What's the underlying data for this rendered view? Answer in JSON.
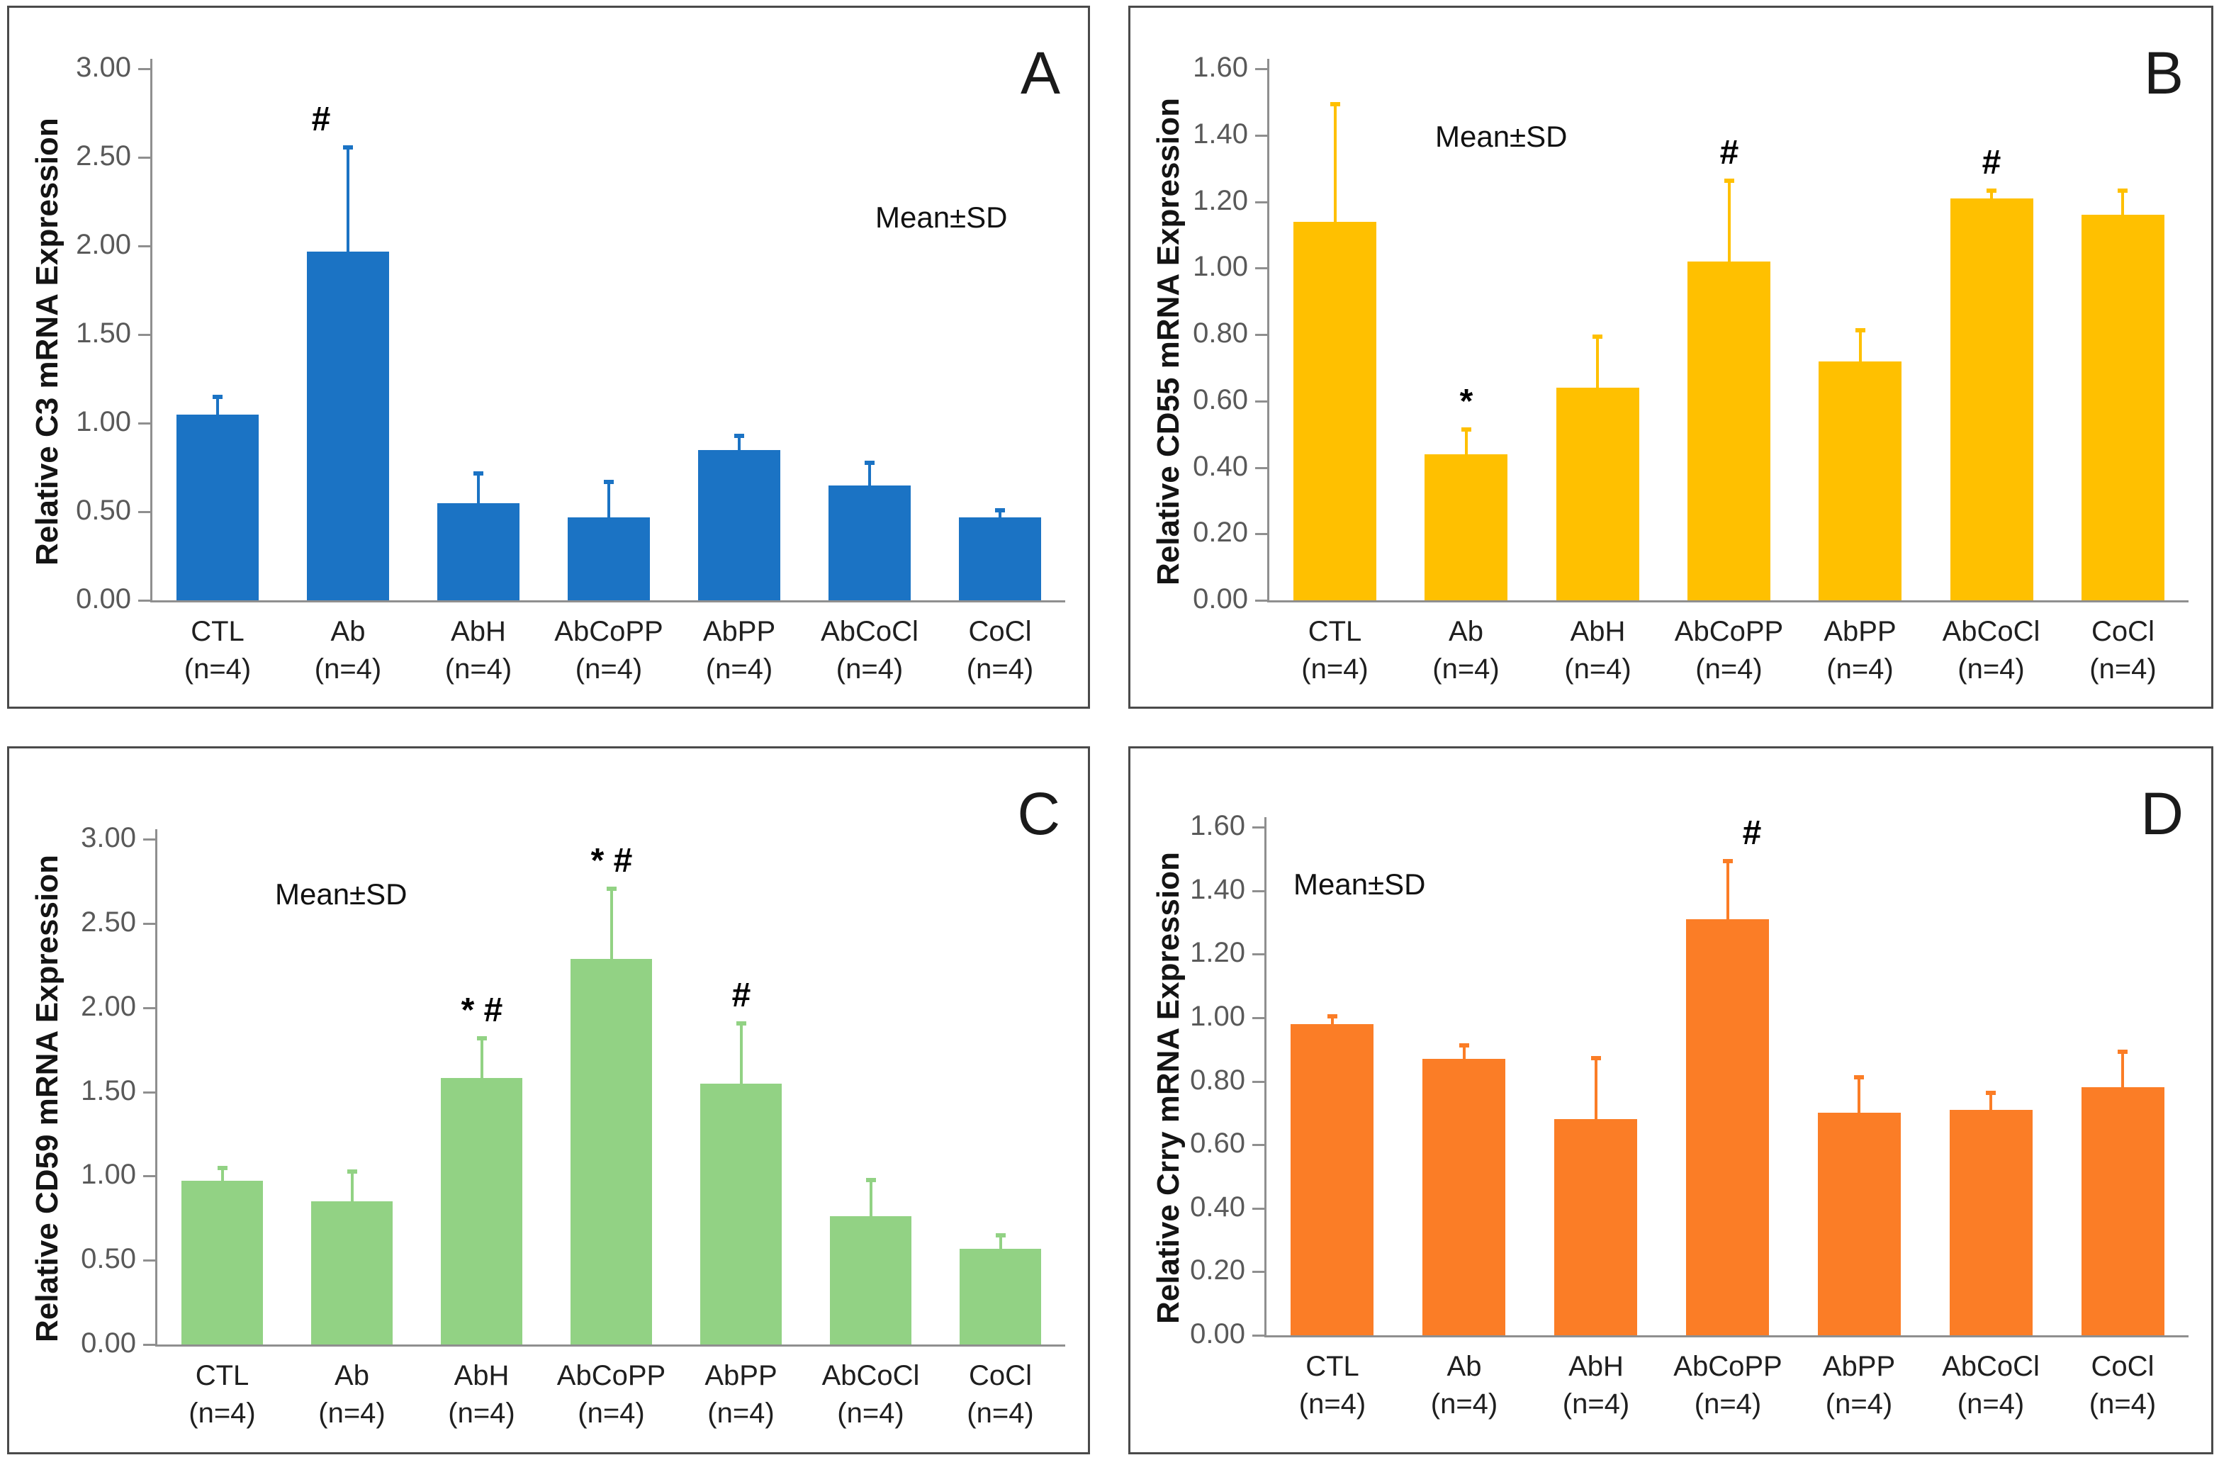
{
  "figure": {
    "mean_sd_label": "Mean±SD",
    "category_sublabel": "(n=4)",
    "panel_border_color": "#4a4a4a",
    "axis_color": "#8f8f8f",
    "tick_text_color": "#595959"
  },
  "chart_data": [
    {
      "type": "bar",
      "panel_letter": "A",
      "ylabel": "Relative C3 mRNA Expression",
      "xlabel": "",
      "title": "",
      "legend": "Mean±SD",
      "color": "#1B73C4",
      "ylim": [
        0,
        3.0
      ],
      "ytick_values": [
        0.0,
        0.5,
        1.0,
        1.5,
        2.0,
        2.5,
        3.0
      ],
      "ytick_labels": [
        "0.00",
        "0.50",
        "1.00",
        "1.50",
        "2.00",
        "2.50",
        "3.00"
      ],
      "categories": [
        "CTL",
        "Ab",
        "AbH",
        "AbCoPP",
        "AbPP",
        "AbCoCl",
        "CoCl"
      ],
      "n_per_group": 4,
      "values": [
        1.05,
        1.97,
        0.55,
        0.47,
        0.85,
        0.65,
        0.47
      ],
      "errors_upper": [
        0.11,
        0.6,
        0.18,
        0.21,
        0.09,
        0.14,
        0.05
      ],
      "annotations": [
        "",
        "#",
        "",
        "",
        "",
        "",
        ""
      ]
    },
    {
      "type": "bar",
      "panel_letter": "B",
      "ylabel": "Relative CD55 mRNA Expression",
      "xlabel": "",
      "title": "",
      "legend": "Mean±SD",
      "color": "#FFC000",
      "ylim": [
        0,
        1.6
      ],
      "ytick_values": [
        0.0,
        0.2,
        0.4,
        0.6,
        0.8,
        1.0,
        1.2,
        1.4,
        1.6
      ],
      "ytick_labels": [
        "0.00",
        "0.20",
        "0.40",
        "0.60",
        "0.80",
        "1.00",
        "1.20",
        "1.40",
        "1.60"
      ],
      "categories": [
        "CTL",
        "Ab",
        "AbH",
        "AbCoPP",
        "AbPP",
        "AbCoCl",
        "CoCl"
      ],
      "n_per_group": 4,
      "values": [
        1.14,
        0.44,
        0.64,
        1.02,
        0.72,
        1.21,
        1.16
      ],
      "errors_upper": [
        0.36,
        0.08,
        0.16,
        0.25,
        0.1,
        0.03,
        0.08
      ],
      "annotations": [
        "",
        "*",
        "",
        "#",
        "",
        "#",
        ""
      ]
    },
    {
      "type": "bar",
      "panel_letter": "C",
      "ylabel": "Relative CD59 mRNA Expression",
      "xlabel": "",
      "title": "",
      "legend": "Mean±SD",
      "color": "#92D284",
      "ylim": [
        0,
        3.0
      ],
      "ytick_values": [
        0.0,
        0.5,
        1.0,
        1.5,
        2.0,
        2.5,
        3.0
      ],
      "ytick_labels": [
        "0.00",
        "0.50",
        "1.00",
        "1.50",
        "2.00",
        "2.50",
        "3.00"
      ],
      "categories": [
        "CTL",
        "Ab",
        "AbH",
        "AbCoPP",
        "AbPP",
        "AbCoCl",
        "CoCl"
      ],
      "n_per_group": 4,
      "values": [
        0.97,
        0.85,
        1.58,
        2.29,
        1.55,
        0.76,
        0.57
      ],
      "errors_upper": [
        0.09,
        0.19,
        0.25,
        0.43,
        0.37,
        0.23,
        0.09
      ],
      "annotations": [
        "",
        "",
        "* #",
        "* #",
        "#",
        "",
        ""
      ]
    },
    {
      "type": "bar",
      "panel_letter": "D",
      "ylabel": "Relative Crry mRNA Expression",
      "xlabel": "",
      "title": "",
      "legend": "Mean±SD",
      "color": "#FB7D26",
      "ylim": [
        0,
        1.6
      ],
      "ytick_values": [
        0.0,
        0.2,
        0.4,
        0.6,
        0.8,
        1.0,
        1.2,
        1.4,
        1.6
      ],
      "ytick_labels": [
        "0.00",
        "0.20",
        "0.40",
        "0.60",
        "0.80",
        "1.00",
        "1.20",
        "1.40",
        "1.60"
      ],
      "categories": [
        "CTL",
        "Ab",
        "AbH",
        "AbCoPP",
        "AbPP",
        "AbCoCl",
        "CoCl"
      ],
      "n_per_group": 4,
      "values": [
        0.98,
        0.87,
        0.68,
        1.31,
        0.7,
        0.71,
        0.78
      ],
      "errors_upper": [
        0.03,
        0.05,
        0.2,
        0.19,
        0.12,
        0.06,
        0.12
      ],
      "annotations": [
        "",
        "",
        "",
        "#",
        "",
        "",
        ""
      ]
    }
  ]
}
